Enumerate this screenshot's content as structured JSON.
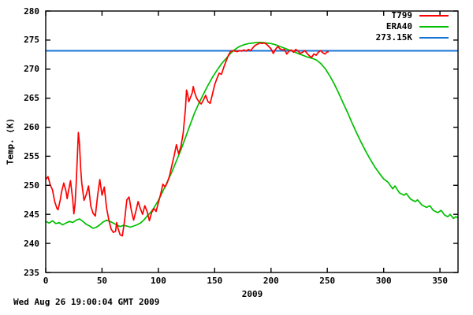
{
  "chart_data": {
    "type": "line",
    "title": "",
    "xlabel": "2009",
    "ylabel": "Temp. (K)",
    "timestamp": "Wed Aug 26 19:00:04 GMT 2009",
    "xlim": [
      0,
      366
    ],
    "ylim": [
      235,
      280
    ],
    "xticks": [
      0,
      50,
      100,
      150,
      200,
      250,
      300,
      350
    ],
    "yticks": [
      235,
      240,
      245,
      250,
      255,
      260,
      265,
      270,
      275,
      280
    ],
    "grid": false,
    "legend_position": "top-right-inside",
    "background": "#ffffff",
    "axis_color": "#000000",
    "series": [
      {
        "name": "T799",
        "color": "#ff0000",
        "points": [
          [
            0,
            251.0
          ],
          [
            2,
            251.5
          ],
          [
            4,
            250.1
          ],
          [
            6,
            249.2
          ],
          [
            8,
            247.2
          ],
          [
            10,
            246.0
          ],
          [
            11,
            245.8
          ],
          [
            13,
            247.6
          ],
          [
            14,
            248.8
          ],
          [
            16,
            250.4
          ],
          [
            18,
            249.0
          ],
          [
            19,
            247.7
          ],
          [
            20,
            248.8
          ],
          [
            22,
            250.8
          ],
          [
            24,
            247.5
          ],
          [
            25,
            245.1
          ],
          [
            26,
            246.8
          ],
          [
            27,
            250.2
          ],
          [
            28,
            254.5
          ],
          [
            29,
            259.1
          ],
          [
            30,
            257.0
          ],
          [
            31,
            253.0
          ],
          [
            32,
            250.4
          ],
          [
            34,
            247.4
          ],
          [
            36,
            248.4
          ],
          [
            38,
            249.9
          ],
          [
            40,
            246.4
          ],
          [
            42,
            245.2
          ],
          [
            44,
            244.7
          ],
          [
            46,
            248.1
          ],
          [
            48,
            251.0
          ],
          [
            50,
            248.3
          ],
          [
            52,
            249.7
          ],
          [
            54,
            246.1
          ],
          [
            56,
            244.1
          ],
          [
            58,
            242.5
          ],
          [
            60,
            241.9
          ],
          [
            62,
            242.1
          ],
          [
            63,
            243.6
          ],
          [
            64,
            242.7
          ],
          [
            66,
            241.5
          ],
          [
            68,
            241.3
          ],
          [
            70,
            243.9
          ],
          [
            72,
            247.5
          ],
          [
            74,
            248.0
          ],
          [
            76,
            245.7
          ],
          [
            78,
            244.0
          ],
          [
            80,
            245.5
          ],
          [
            82,
            247.2
          ],
          [
            84,
            246.0
          ],
          [
            86,
            245.0
          ],
          [
            88,
            246.5
          ],
          [
            90,
            245.5
          ],
          [
            92,
            243.9
          ],
          [
            94,
            245.3
          ],
          [
            96,
            246.0
          ],
          [
            98,
            245.5
          ],
          [
            100,
            247.0
          ],
          [
            102,
            248.5
          ],
          [
            104,
            250.2
          ],
          [
            106,
            249.7
          ],
          [
            108,
            250.5
          ],
          [
            110,
            251.7
          ],
          [
            112,
            253.4
          ],
          [
            114,
            255.1
          ],
          [
            116,
            257.0
          ],
          [
            118,
            255.4
          ],
          [
            120,
            256.7
          ],
          [
            122,
            258.9
          ],
          [
            124,
            263.1
          ],
          [
            125,
            266.4
          ],
          [
            126,
            265.7
          ],
          [
            127,
            264.4
          ],
          [
            128,
            264.9
          ],
          [
            130,
            265.9
          ],
          [
            131,
            267.0
          ],
          [
            132,
            266.1
          ],
          [
            134,
            265.0
          ],
          [
            136,
            264.4
          ],
          [
            138,
            264.0
          ],
          [
            140,
            264.7
          ],
          [
            142,
            265.5
          ],
          [
            144,
            264.4
          ],
          [
            146,
            264.1
          ],
          [
            148,
            265.7
          ],
          [
            150,
            267.3
          ],
          [
            152,
            268.4
          ],
          [
            154,
            269.3
          ],
          [
            156,
            269.1
          ],
          [
            158,
            270.3
          ],
          [
            160,
            271.3
          ],
          [
            162,
            272.3
          ],
          [
            164,
            273.0
          ],
          [
            166,
            273.2
          ],
          [
            168,
            273.1
          ],
          [
            170,
            273.0
          ],
          [
            172,
            273.2
          ],
          [
            174,
            273.1
          ],
          [
            176,
            273.3
          ],
          [
            178,
            273.1
          ],
          [
            180,
            273.4
          ],
          [
            182,
            273.2
          ],
          [
            184,
            273.7
          ],
          [
            186,
            274.1
          ],
          [
            188,
            274.3
          ],
          [
            190,
            274.5
          ],
          [
            192,
            274.4
          ],
          [
            194,
            274.5
          ],
          [
            196,
            274.3
          ],
          [
            198,
            273.9
          ],
          [
            200,
            273.5
          ],
          [
            202,
            272.7
          ],
          [
            204,
            273.4
          ],
          [
            206,
            273.9
          ],
          [
            208,
            273.5
          ],
          [
            210,
            273.3
          ],
          [
            212,
            273.4
          ],
          [
            214,
            272.6
          ],
          [
            216,
            273.1
          ],
          [
            218,
            273.3
          ],
          [
            220,
            272.9
          ],
          [
            222,
            273.4
          ],
          [
            224,
            273.1
          ],
          [
            226,
            272.7
          ],
          [
            228,
            272.9
          ],
          [
            230,
            273.2
          ],
          [
            232,
            272.7
          ],
          [
            234,
            272.3
          ],
          [
            236,
            272.0
          ],
          [
            238,
            272.6
          ],
          [
            240,
            272.4
          ],
          [
            242,
            272.9
          ],
          [
            244,
            273.2
          ],
          [
            246,
            272.8
          ],
          [
            248,
            272.6
          ],
          [
            250,
            273.0
          ],
          [
            251,
            272.9
          ]
        ]
      },
      {
        "name": "ERA40",
        "color": "#00c000",
        "points": [
          [
            0,
            243.8
          ],
          [
            3,
            243.5
          ],
          [
            6,
            243.9
          ],
          [
            9,
            243.4
          ],
          [
            12,
            243.6
          ],
          [
            15,
            243.2
          ],
          [
            18,
            243.5
          ],
          [
            21,
            243.8
          ],
          [
            24,
            243.6
          ],
          [
            27,
            244.0
          ],
          [
            30,
            244.2
          ],
          [
            33,
            243.8
          ],
          [
            36,
            243.3
          ],
          [
            39,
            243.0
          ],
          [
            42,
            242.6
          ],
          [
            45,
            242.8
          ],
          [
            48,
            243.2
          ],
          [
            51,
            243.7
          ],
          [
            54,
            244.0
          ],
          [
            57,
            243.8
          ],
          [
            60,
            243.5
          ],
          [
            63,
            243.2
          ],
          [
            66,
            242.9
          ],
          [
            69,
            243.1
          ],
          [
            72,
            243.0
          ],
          [
            75,
            242.8
          ],
          [
            78,
            243.0
          ],
          [
            81,
            243.2
          ],
          [
            84,
            243.5
          ],
          [
            87,
            244.0
          ],
          [
            90,
            244.7
          ],
          [
            93,
            245.3
          ],
          [
            96,
            246.1
          ],
          [
            100,
            247.4
          ],
          [
            104,
            249.0
          ],
          [
            108,
            250.6
          ],
          [
            112,
            252.3
          ],
          [
            116,
            254.2
          ],
          [
            120,
            256.1
          ],
          [
            124,
            258.2
          ],
          [
            128,
            260.3
          ],
          [
            132,
            262.4
          ],
          [
            136,
            264.1
          ],
          [
            140,
            265.7
          ],
          [
            144,
            267.2
          ],
          [
            148,
            268.6
          ],
          [
            152,
            269.8
          ],
          [
            156,
            270.9
          ],
          [
            160,
            271.8
          ],
          [
            164,
            272.7
          ],
          [
            168,
            273.4
          ],
          [
            172,
            273.9
          ],
          [
            176,
            274.2
          ],
          [
            180,
            274.4
          ],
          [
            184,
            274.5
          ],
          [
            188,
            274.6
          ],
          [
            192,
            274.6
          ],
          [
            196,
            274.5
          ],
          [
            200,
            274.4
          ],
          [
            204,
            274.2
          ],
          [
            208,
            273.9
          ],
          [
            212,
            273.6
          ],
          [
            216,
            273.3
          ],
          [
            220,
            273.0
          ],
          [
            224,
            272.7
          ],
          [
            228,
            272.4
          ],
          [
            232,
            272.1
          ],
          [
            236,
            271.9
          ],
          [
            240,
            271.6
          ],
          [
            244,
            271.0
          ],
          [
            248,
            270.1
          ],
          [
            252,
            268.9
          ],
          [
            256,
            267.5
          ],
          [
            260,
            265.9
          ],
          [
            264,
            264.2
          ],
          [
            268,
            262.5
          ],
          [
            272,
            260.7
          ],
          [
            276,
            259.0
          ],
          [
            280,
            257.4
          ],
          [
            284,
            255.9
          ],
          [
            288,
            254.5
          ],
          [
            292,
            253.2
          ],
          [
            296,
            252.1
          ],
          [
            300,
            251.1
          ],
          [
            304,
            250.5
          ],
          [
            308,
            249.4
          ],
          [
            310,
            249.9
          ],
          [
            314,
            248.7
          ],
          [
            318,
            248.3
          ],
          [
            320,
            248.6
          ],
          [
            324,
            247.6
          ],
          [
            328,
            247.2
          ],
          [
            330,
            247.5
          ],
          [
            334,
            246.6
          ],
          [
            338,
            246.2
          ],
          [
            341,
            246.5
          ],
          [
            344,
            245.7
          ],
          [
            348,
            245.3
          ],
          [
            351,
            245.7
          ],
          [
            354,
            244.9
          ],
          [
            357,
            244.6
          ],
          [
            359,
            245.0
          ],
          [
            362,
            244.3
          ],
          [
            364,
            244.6
          ],
          [
            366,
            244.4
          ]
        ]
      },
      {
        "name": "273.15K",
        "color": "#1874d8",
        "hline": 273.15
      }
    ]
  }
}
